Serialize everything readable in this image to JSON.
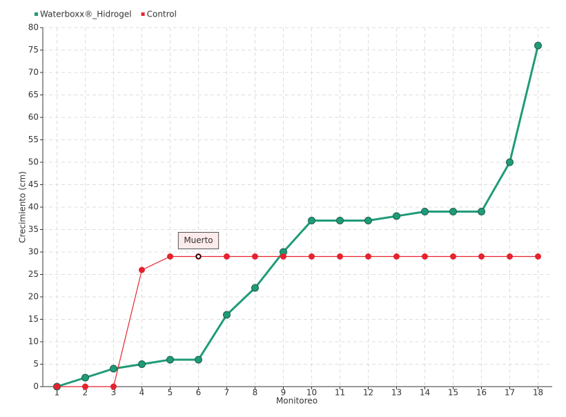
{
  "chart_data": {
    "type": "line",
    "x_label": "Monitoreo",
    "y_label": "Crecimiento (cm)",
    "categories": [
      "1",
      "2",
      "3",
      "4",
      "5",
      "6",
      "7",
      "8",
      "9",
      "10",
      "11",
      "12",
      "13",
      "14",
      "15",
      "16",
      "17",
      "18"
    ],
    "series": [
      {
        "name": "Waterboxx®_Hidrogel",
        "color": "#1f9b78",
        "values": [
          0,
          2,
          4,
          5,
          6,
          6,
          16,
          22,
          30,
          37,
          37,
          37,
          38,
          39,
          39,
          39,
          50,
          76
        ]
      },
      {
        "name": "Control",
        "color": "#e5232e",
        "values": [
          0,
          0,
          0,
          26,
          29,
          29,
          29,
          29,
          29,
          29,
          29,
          29,
          29,
          29,
          29,
          29,
          29,
          29
        ]
      }
    ],
    "ylim": [
      0,
      80
    ],
    "yticks": [
      0,
      5,
      10,
      15,
      20,
      25,
      30,
      35,
      40,
      45,
      50,
      55,
      60,
      65,
      70,
      75,
      80
    ],
    "grid": true,
    "legend": "top-left",
    "annotations": [
      {
        "text": "Muerto",
        "category": "6",
        "series": "Control"
      }
    ]
  }
}
